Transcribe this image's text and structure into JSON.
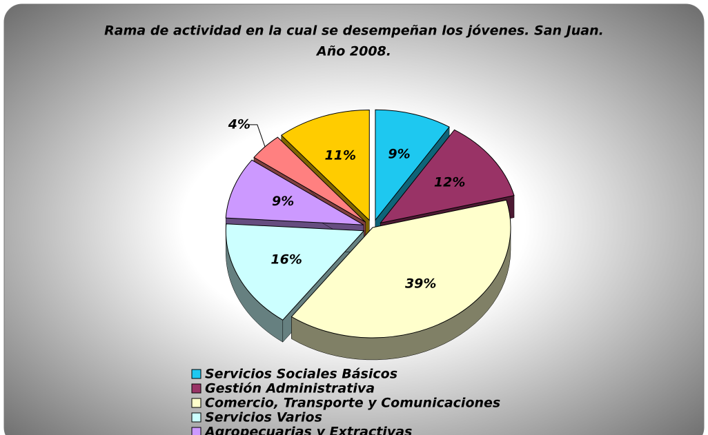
{
  "chart_data": {
    "type": "pie",
    "title": [
      "Rama de actividad en la cual se desempeñan los jóvenes. San Juan.",
      "Año 2008."
    ],
    "categories": [
      "Servicios Sociales Básicos",
      "Gestión Administrativa",
      "Comercio, Transporte y Comunicaciones",
      "Servicios Varios",
      "Agropecuarias y Extractivas",
      null,
      null
    ],
    "values": [
      9,
      12,
      39,
      16,
      9,
      4,
      11
    ],
    "value_labels": [
      "9%",
      "12%",
      "39%",
      "16%",
      "9%",
      "4%",
      "11%"
    ],
    "colors": [
      "#1ec8f0",
      "#993366",
      "#ffffcc",
      "#ccffff",
      "#cc99ff",
      "#ff8080",
      "#ffcc00"
    ],
    "exploded": [
      0,
      1,
      3,
      4,
      5,
      6
    ],
    "legend": "bottom"
  }
}
